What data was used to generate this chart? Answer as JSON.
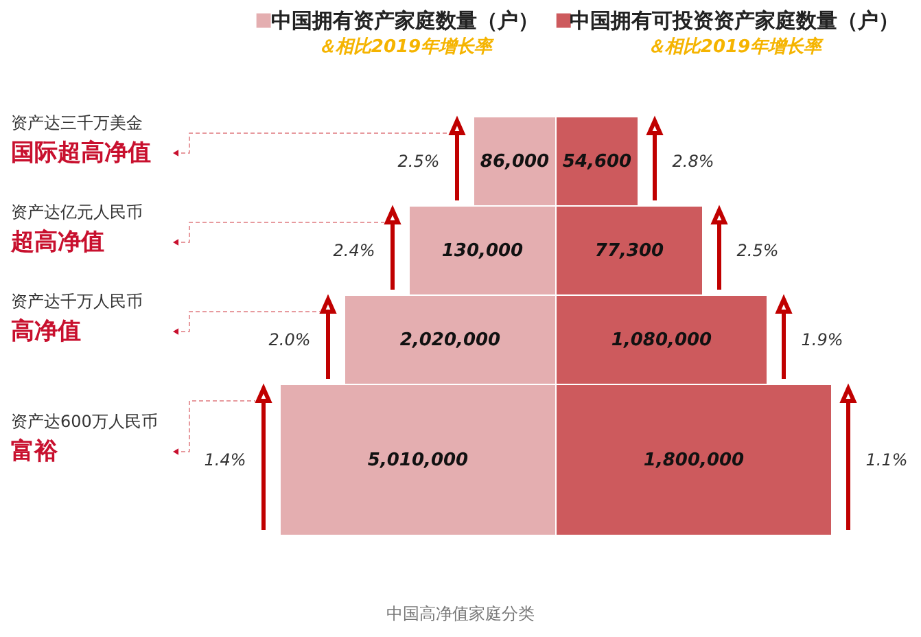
{
  "chart_data": {
    "type": "other",
    "categories": [
      "国际超高净值",
      "超高净值",
      "高净值",
      "富裕"
    ],
    "series": [
      {
        "name": "中国拥有资产家庭数量（户）",
        "color": "#e4aeb0",
        "values": [
          86000,
          130000,
          2020000,
          5010000
        ],
        "value_labels": [
          "86,000",
          "130,000",
          "2,020,000",
          "5,010,000"
        ]
      },
      {
        "name": "＆相比2019年增长率",
        "values": [
          2.5,
          2.4,
          2.0,
          1.4
        ],
        "value_labels": [
          "2.5%",
          "2.4%",
          "2.0%",
          "1.4%"
        ]
      },
      {
        "name": "中国拥有可投资资产家庭数量（户）",
        "color": "#cd5a5d",
        "values": [
          54600,
          77300,
          1080000,
          1800000
        ],
        "value_labels": [
          "54,600",
          "77,300",
          "1,080,000",
          "1,800,000"
        ]
      },
      {
        "name": "＆相比2019年增长率",
        "values": [
          2.8,
          2.5,
          1.9,
          1.1
        ],
        "value_labels": [
          "2.8%",
          "2.5%",
          "1.9%",
          "1.1%"
        ]
      }
    ],
    "legend": "top",
    "annotations": [
      {
        "text": "资产达三千万美金",
        "y": "国际超高净值"
      },
      {
        "text": "资产达亿元人民币",
        "y": "超高净值"
      },
      {
        "text": "资产达千万人民币",
        "y": "高净值"
      },
      {
        "text": "资产达600万人民币",
        "y": "富裕"
      },
      "中国高净值家庭分类"
    ]
  }
}
